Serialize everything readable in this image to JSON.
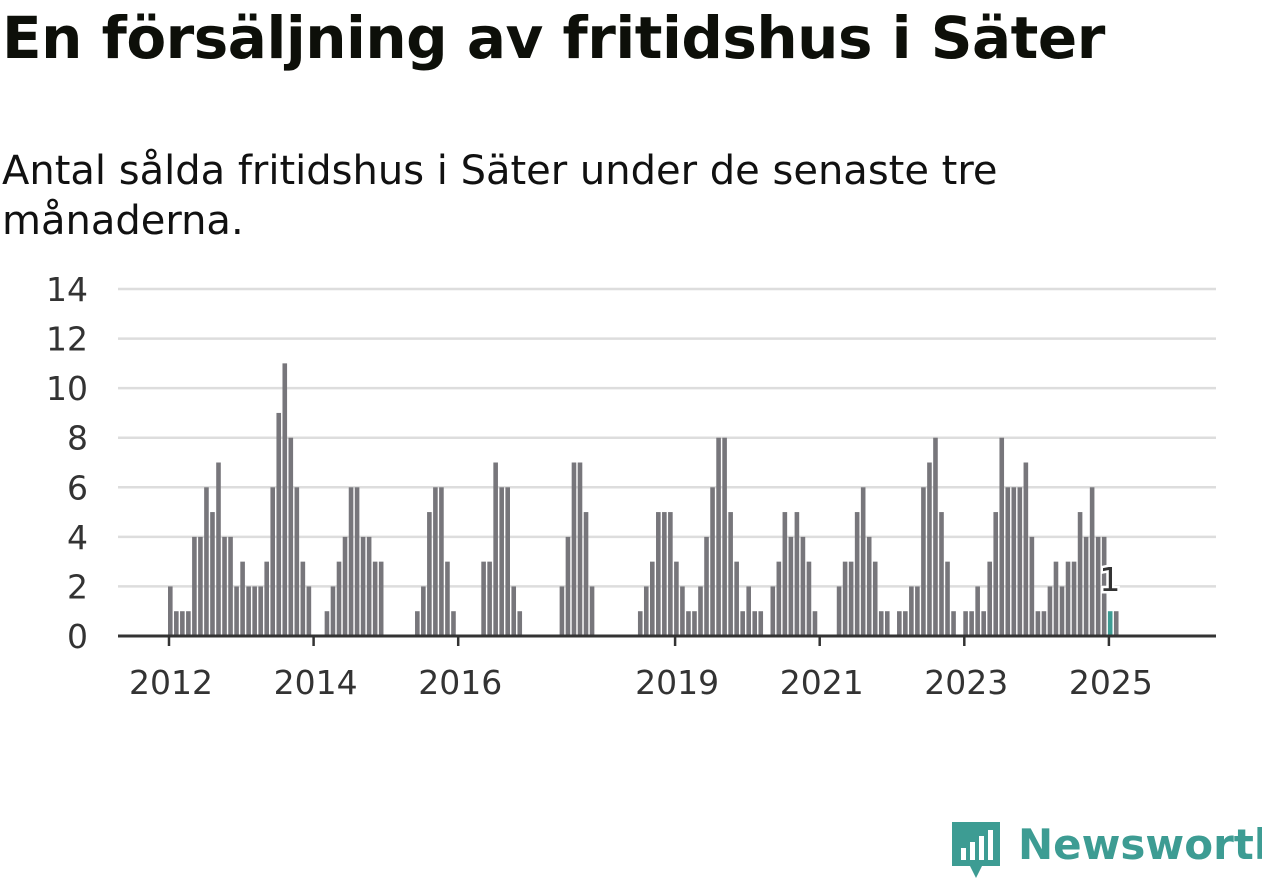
{
  "title": "En försäljning av fritidshus i Säter",
  "subtitle": "Antal sålda fritidshus i Säter under de senaste tre månaderna.",
  "brand": {
    "name": "Newsworthy",
    "icon": "newsworthy-logo-icon",
    "color": "#3d9c93"
  },
  "chart_data": {
    "type": "bar",
    "title": "En försäljning av fritidshus i Säter",
    "subtitle": "Antal sålda fritidshus i Säter under de senaste tre månaderna.",
    "xlabel": "",
    "ylabel": "",
    "ylim": [
      0,
      14
    ],
    "yticks": [
      0,
      2,
      4,
      6,
      8,
      10,
      12,
      14
    ],
    "xticks": [
      "2012",
      "2014",
      "2016",
      "2019",
      "2021",
      "2023",
      "2025"
    ],
    "grid": true,
    "bar_color": "#77767b",
    "highlight_color": "#3d9c93",
    "start": "2012-01",
    "end": "2025-01",
    "values": [
      2,
      1,
      1,
      1,
      4,
      4,
      6,
      5,
      7,
      4,
      4,
      2,
      3,
      2,
      2,
      2,
      3,
      6,
      9,
      11,
      8,
      6,
      3,
      2,
      0,
      0,
      1,
      2,
      3,
      4,
      6,
      6,
      4,
      4,
      3,
      3,
      0,
      0,
      0,
      0,
      0,
      1,
      2,
      5,
      6,
      6,
      3,
      1,
      0,
      0,
      0,
      0,
      3,
      3,
      7,
      6,
      6,
      2,
      1,
      0,
      0,
      0,
      0,
      0,
      0,
      2,
      4,
      7,
      7,
      5,
      2,
      0,
      0,
      0,
      0,
      0,
      0,
      0,
      1,
      2,
      3,
      5,
      5,
      5,
      3,
      2,
      1,
      1,
      2,
      4,
      6,
      8,
      8,
      5,
      3,
      1,
      2,
      1,
      1,
      0,
      2,
      3,
      5,
      4,
      5,
      4,
      3,
      1,
      0,
      0,
      0,
      2,
      3,
      3,
      5,
      6,
      4,
      3,
      1,
      1,
      0,
      1,
      1,
      2,
      2,
      6,
      7,
      8,
      5,
      3,
      1,
      0,
      1,
      1,
      2,
      1,
      3,
      5,
      8,
      6,
      6,
      6,
      7,
      4,
      1,
      1,
      2,
      3,
      2,
      3,
      3,
      5,
      4,
      6,
      4,
      4,
      1,
      1
    ],
    "highlight": {
      "date": "2025-01",
      "value": 1,
      "label": "1"
    }
  }
}
